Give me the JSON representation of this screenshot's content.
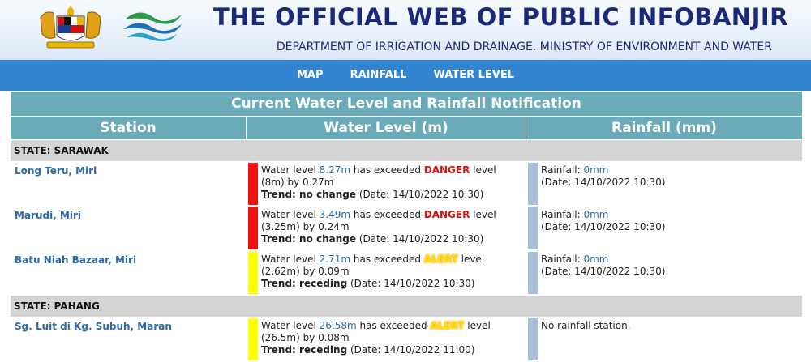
{
  "header": {
    "title": "THE OFFICIAL WEB OF PUBLIC INFOBANJIR",
    "subtitle": "DEPARTMENT OF IRRIGATION AND DRAINAGE. MINISTRY OF ENVIRONMENT AND WATER",
    "crest_icon": "malaysia-coat-of-arms-icon",
    "logo_icon": "jps-wave-logo-icon"
  },
  "nav": {
    "items": [
      "MAP",
      "RAINFALL",
      "WATER LEVEL"
    ]
  },
  "table": {
    "caption": "Current Water Level and Rainfall Notification",
    "columns": [
      "Station",
      "Water Level (m)",
      "Rainfall (mm)"
    ],
    "wl_prefix": "Water level ",
    "wl_mid": " has exceeded ",
    "wl_after_level": " level",
    "wl_by": " by ",
    "trend_label": "Trend: ",
    "date_open": " (Date: ",
    "date_close": ")",
    "rf_prefix": "Rainfall: ",
    "rf_date_open": "(Date: ",
    "states": [
      {
        "label": "STATE: SARAWAK",
        "rows": [
          {
            "station": "Long Teru, Miri",
            "value": "8.27m",
            "level": "DANGER",
            "threshold": "(8m)",
            "excess": "0.27m",
            "trend": "no change",
            "date": "14/10/2022 10:30",
            "rainfall": "0mm",
            "rainfall_date": "14/10/2022 10:30",
            "no_rain": ""
          },
          {
            "station": "Marudi, Miri",
            "value": "3.49m",
            "level": "DANGER",
            "threshold": "(3.25m)",
            "excess": "0.24m",
            "trend": "no change",
            "date": "14/10/2022 10:30",
            "rainfall": "0mm",
            "rainfall_date": "14/10/2022 10:30",
            "no_rain": ""
          },
          {
            "station": "Batu Niah Bazaar, Miri",
            "value": "2.71m",
            "level": "ALERT",
            "threshold": "(2.62m)",
            "excess": "0.09m",
            "trend": "receding",
            "date": "14/10/2022 10:30",
            "rainfall": "0mm",
            "rainfall_date": "14/10/2022 10:30",
            "no_rain": ""
          }
        ]
      },
      {
        "label": "STATE: PAHANG",
        "rows": [
          {
            "station": "Sg. Luit di Kg. Subuh, Maran",
            "value": "26.58m",
            "level": "ALERT",
            "threshold": "(26.5m)",
            "excess": "0.08m",
            "trend": "receding",
            "date": "14/10/2022 11:00",
            "rainfall": "",
            "rainfall_date": "",
            "no_rain": "No rainfall station."
          }
        ]
      }
    ]
  },
  "colors": {
    "danger": "#ee1111",
    "alert": "#ffff00",
    "rain_bar": "#a9bfdc",
    "header_teal": "#6aaab9",
    "nav_blue": "#3385d1"
  }
}
